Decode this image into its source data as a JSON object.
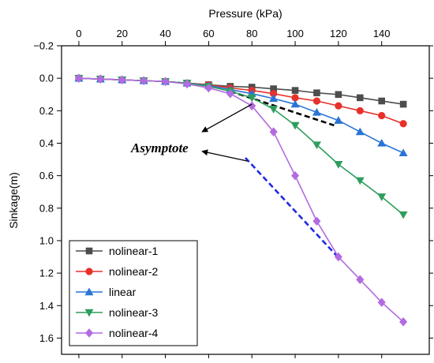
{
  "chart_data": {
    "type": "line",
    "xlabel": "Pressure (kPa)",
    "ylabel": "Sinkage(m)",
    "xlim": [
      -8,
      162
    ],
    "ylim": [
      -0.2,
      1.7
    ],
    "y_inverted": true,
    "x_axis_position": "top",
    "xticks": [
      "0",
      "20",
      "40",
      "60",
      "80",
      "100",
      "120",
      "140"
    ],
    "xtick_values": [
      0,
      20,
      40,
      60,
      80,
      100,
      120,
      140
    ],
    "yticks": [
      "−0.2",
      "0.0",
      "0.2",
      "0.4",
      "0.6",
      "0.8",
      "1.0",
      "1.2",
      "1.4",
      "1.6"
    ],
    "ytick_values": [
      -0.2,
      0.0,
      0.2,
      0.4,
      0.6,
      0.8,
      1.0,
      1.2,
      1.4,
      1.6
    ],
    "legend_position": "bottom-left",
    "grid": false,
    "series": [
      {
        "name": "nolinear-1",
        "color": "#4d4d4d",
        "marker": "square",
        "x": [
          0,
          10,
          20,
          30,
          40,
          50,
          60,
          70,
          80,
          90,
          100,
          110,
          120,
          130,
          140,
          150
        ],
        "y": [
          0.0,
          0.005,
          0.01,
          0.015,
          0.02,
          0.03,
          0.04,
          0.05,
          0.055,
          0.065,
          0.075,
          0.09,
          0.1,
          0.12,
          0.14,
          0.16
        ]
      },
      {
        "name": "nolinear-2",
        "color": "#e8302a",
        "marker": "circle",
        "x": [
          0,
          10,
          20,
          30,
          40,
          50,
          60,
          70,
          80,
          90,
          100,
          110,
          120,
          130,
          140,
          150
        ],
        "y": [
          0.0,
          0.005,
          0.01,
          0.015,
          0.02,
          0.03,
          0.04,
          0.06,
          0.075,
          0.095,
          0.12,
          0.14,
          0.17,
          0.2,
          0.23,
          0.28
        ]
      },
      {
        "name": "linear",
        "color": "#2a74d6",
        "marker": "triangle-up",
        "x": [
          0,
          10,
          20,
          30,
          40,
          50,
          60,
          70,
          80,
          90,
          100,
          110,
          120,
          130,
          140,
          150
        ],
        "y": [
          0.0,
          0.005,
          0.01,
          0.015,
          0.02,
          0.03,
          0.045,
          0.07,
          0.095,
          0.125,
          0.16,
          0.21,
          0.26,
          0.33,
          0.4,
          0.46
        ]
      },
      {
        "name": "nolinear-3",
        "color": "#2e9e5e",
        "marker": "triangle-down",
        "x": [
          0,
          10,
          20,
          30,
          40,
          50,
          60,
          70,
          80,
          90,
          100,
          110,
          120,
          130,
          140,
          150
        ],
        "y": [
          0.0,
          0.005,
          0.01,
          0.015,
          0.02,
          0.03,
          0.05,
          0.08,
          0.12,
          0.19,
          0.29,
          0.41,
          0.53,
          0.63,
          0.73,
          0.84
        ]
      },
      {
        "name": "nolinear-4",
        "color": "#b26be0",
        "marker": "diamond",
        "x": [
          0,
          10,
          20,
          30,
          40,
          50,
          60,
          70,
          80,
          90,
          100,
          110,
          120,
          130,
          140,
          150
        ],
        "y": [
          0.0,
          0.005,
          0.01,
          0.015,
          0.02,
          0.035,
          0.06,
          0.095,
          0.17,
          0.33,
          0.6,
          0.88,
          1.1,
          1.24,
          1.38,
          1.5
        ]
      }
    ],
    "asymptotes": [
      {
        "color": "#000000",
        "x": [
          70,
          118
        ],
        "y": [
          0.08,
          0.29
        ]
      },
      {
        "color": "#1f2be0",
        "x": [
          77,
          119
        ],
        "y": [
          0.49,
          1.09
        ]
      }
    ],
    "annotation": {
      "text": "Asymptote",
      "arrows": [
        {
          "from_x": 80,
          "from_y": 0.16,
          "to_x": 57,
          "to_y": 0.33
        },
        {
          "from_x": 78,
          "from_y": 0.51,
          "to_x": 57,
          "to_y": 0.45
        }
      ]
    }
  }
}
